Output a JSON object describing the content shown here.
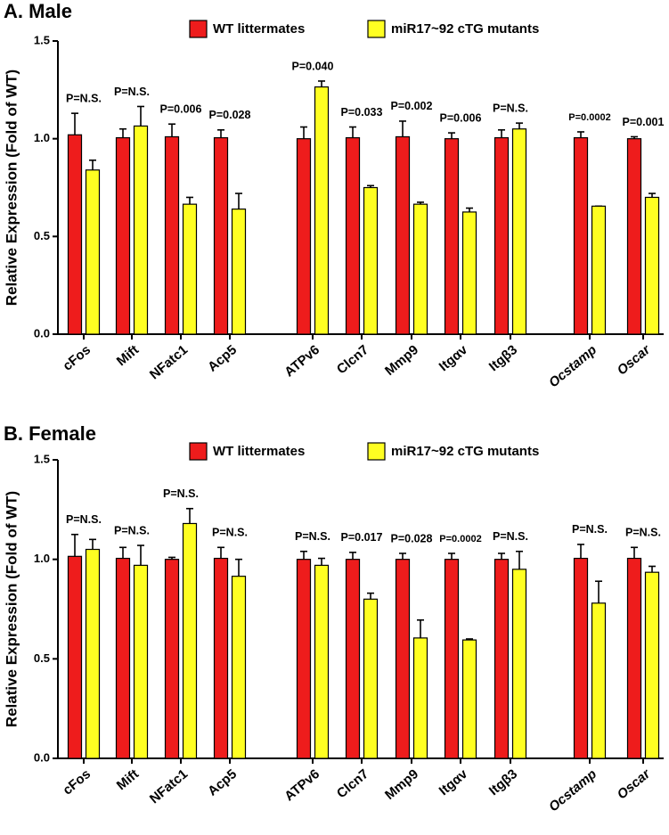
{
  "chart_data": [
    {
      "type": "bar",
      "title": "A.  Male",
      "ylabel": "Relative Expression (Fold of WT)",
      "categories": [
        "cFos",
        "Mift",
        "NFatc1",
        "Acp5",
        "ATPv6",
        "Clcn7",
        "Mmp9",
        "Itgαv",
        "Itgβ3",
        "Ocstamp",
        "Oscar"
      ],
      "series": [
        {
          "name": "WT littermates",
          "color": "#ee1c1c",
          "values": [
            1.02,
            1.005,
            1.01,
            1.005,
            1.0,
            1.005,
            1.01,
            1.0,
            1.005,
            1.005,
            1.0
          ],
          "errors": [
            0.11,
            0.045,
            0.065,
            0.04,
            0.06,
            0.055,
            0.08,
            0.03,
            0.04,
            0.03,
            0.01
          ]
        },
        {
          "name": "miR17~92 cTG mutants",
          "color": "#ffff22",
          "values": [
            0.84,
            1.065,
            0.665,
            0.64,
            1.265,
            0.75,
            0.665,
            0.625,
            1.05,
            0.655,
            0.7
          ],
          "errors": [
            0.05,
            0.1,
            0.035,
            0.08,
            0.03,
            0.01,
            0.01,
            0.02,
            0.03,
            0.0,
            0.02
          ]
        }
      ],
      "annotations": [
        "P=N.S.",
        "P=N.S.",
        "P=0.006",
        "P=0.028",
        "P=0.040",
        "P=0.033",
        "P=0.002",
        "P=0.006",
        "P=N.S.",
        "P=0.0002",
        "P=0.001"
      ],
      "ylim": [
        0,
        1.5
      ],
      "yticks": [
        {
          "value": 0,
          "label": "0.0"
        },
        0.5,
        {
          "value": 1,
          "label": "1.0"
        },
        1.5
      ],
      "legend": "top"
    },
    {
      "type": "bar",
      "title": "B.  Female",
      "ylabel": "Relative Expression (Fold of WT)",
      "categories": [
        "cFos",
        "Mift",
        "NFatc1",
        "Acp5",
        "ATPv6",
        "Clcn7",
        "Mmp9",
        "Itgαv",
        "Itgβ3",
        "Ocstamp",
        "Oscar"
      ],
      "series": [
        {
          "name": "WT littermates",
          "color": "#ee1c1c",
          "values": [
            1.015,
            1.005,
            1.0,
            1.005,
            1.0,
            1.0,
            1.0,
            1.0,
            1.0,
            1.005,
            1.005
          ],
          "errors": [
            0.11,
            0.055,
            0.01,
            0.055,
            0.04,
            0.035,
            0.03,
            0.03,
            0.03,
            0.07,
            0.055
          ]
        },
        {
          "name": "miR17~92 cTG mutants",
          "color": "#ffff22",
          "values": [
            1.05,
            0.97,
            1.18,
            0.915,
            0.97,
            0.8,
            0.605,
            0.595,
            0.95,
            0.78,
            0.935
          ],
          "errors": [
            0.05,
            0.1,
            0.075,
            0.085,
            0.035,
            0.03,
            0.09,
            0.005,
            0.09,
            0.11,
            0.03
          ]
        }
      ],
      "annotations": [
        "P=N.S.",
        "P=N.S.",
        "P=N.S.",
        "P=N.S.",
        "P=N.S.",
        "P=0.017",
        "P=0.028",
        "P=0.0002",
        "P=N.S.",
        "P=N.S.",
        "P=N.S."
      ],
      "ylim": [
        0,
        1.5
      ],
      "yticks": [
        {
          "value": 0,
          "label": "0.0"
        },
        0.5,
        {
          "value": 1,
          "label": "1.0"
        },
        1.5
      ],
      "legend": "top"
    }
  ]
}
